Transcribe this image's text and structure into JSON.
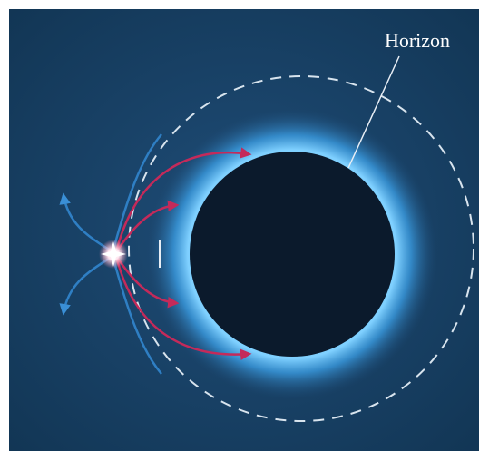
{
  "label": "Horizon"
}
